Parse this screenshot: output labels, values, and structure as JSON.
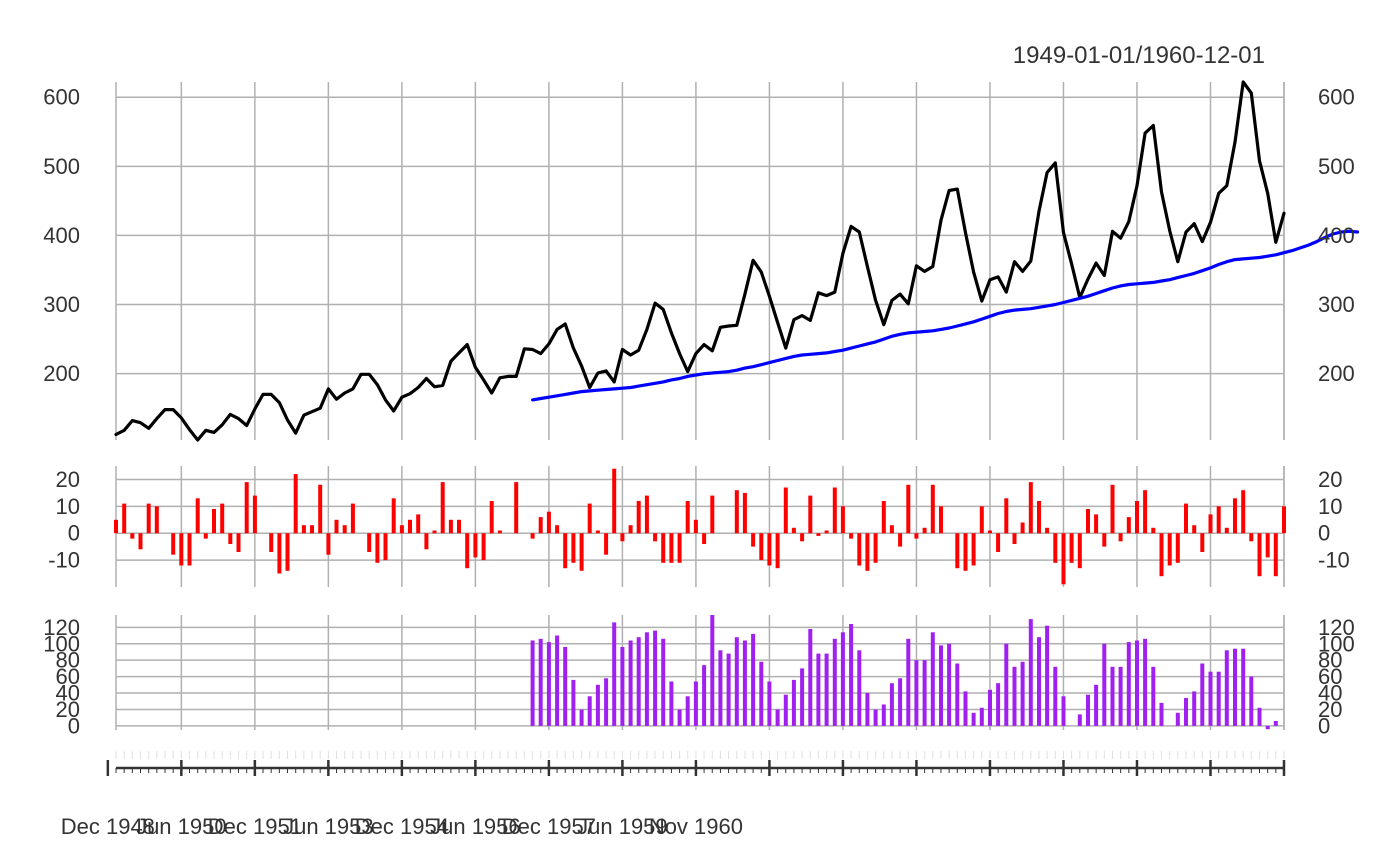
{
  "chart_data": {
    "type": "line",
    "title": "1949-01-01/1960-12-01",
    "x_start": "1949-01",
    "x_end": "1960-12",
    "x_tick_labels": [
      "Dec 1948",
      "Jun 1950",
      "Dec 1951",
      "Jun 1953",
      "Dec 1954",
      "Jun 1956",
      "Dec 1957",
      "Jun 1959",
      "Nov 1960"
    ],
    "grid": true,
    "colors": {
      "price": "#000000",
      "average": "#0000ff",
      "momentum": "#ff0000",
      "indicator": "#a020f0",
      "grid": "#b0b0b0"
    },
    "panels": [
      {
        "id": "main",
        "ylim": [
          104,
          622
        ],
        "y_ticks": [
          200,
          300,
          400,
          500,
          600
        ],
        "series": [
          {
            "id": "price",
            "color": "#000000",
            "start": "1949-01",
            "values": [
              112,
              118,
              132,
              129,
              121,
              135,
              148,
              148,
              136,
              119,
              104,
              118,
              115,
              126,
              141,
              135,
              125,
              149,
              170,
              170,
              158,
              133,
              114,
              140,
              145,
              150,
              178,
              163,
              172,
              178,
              199,
              199,
              184,
              162,
              146,
              166,
              171,
              180,
              193,
              181,
              183,
              218,
              230,
              242,
              209,
              191,
              172,
              194,
              196,
              196,
              236,
              235,
              229,
              243,
              264,
              272,
              237,
              211,
              180,
              201,
              204,
              188,
              235,
              227,
              234,
              264,
              302,
              293,
              259,
              229,
              203,
              229,
              242,
              233,
              267,
              269,
              270,
              315,
              364,
              347,
              312,
              274,
              237,
              278,
              284,
              277,
              317,
              313,
              318,
              374,
              413,
              405,
              355,
              306,
              271,
              306,
              315,
              301,
              356,
              348,
              355,
              422,
              465,
              467,
              404,
              347,
              305,
              336,
              340,
              318,
              362,
              348,
              363,
              435,
              491,
              505,
              404,
              359,
              310,
              337,
              360,
              342,
              406,
              396,
              420,
              472,
              548,
              559,
              463,
              407,
              362,
              405,
              417,
              391,
              419,
              461,
              472,
              535,
              622,
              606,
              508,
              461,
              390,
              432
            ]
          },
          {
            "id": "average",
            "color": "#0000ff",
            "start": "1953-04",
            "values": [
              162,
              164,
              166,
              168,
              170,
              172,
              174,
              175,
              176,
              177,
              178,
              179,
              180,
              182,
              184,
              186,
              188,
              191,
              193,
              196,
              198,
              200,
              201,
              202,
              203,
              205,
              208,
              210,
              213,
              216,
              219,
              222,
              225,
              227,
              228,
              229,
              230,
              232,
              234,
              237,
              240,
              243,
              246,
              250,
              254,
              257,
              259,
              260,
              261,
              262,
              264,
              266,
              269,
              272,
              275,
              279,
              283,
              287,
              290,
              292,
              293,
              294,
              296,
              298,
              300,
              303,
              306,
              309,
              312,
              316,
              320,
              324,
              327,
              329,
              330,
              331,
              332,
              334,
              336,
              339,
              342,
              345,
              349,
              353,
              358,
              362,
              365,
              366,
              367,
              368,
              370,
              372,
              375,
              378,
              382,
              386,
              391,
              397,
              402,
              405,
              406,
              405
            ]
          }
        ]
      },
      {
        "id": "momentum",
        "type": "bar",
        "color": "#ff0000",
        "ylim": [
          -20,
          25
        ],
        "y_ticks": [
          -10,
          0,
          10,
          20
        ],
        "start": "1949-01",
        "values": [
          5,
          11,
          -2,
          -6,
          11,
          10,
          0,
          -8,
          -12,
          -12,
          13,
          -2,
          9,
          11,
          -4,
          -7,
          19,
          14,
          0,
          -7,
          -15,
          -14,
          22,
          3,
          3,
          18,
          -8,
          5,
          3,
          11,
          0,
          -7,
          -11,
          -10,
          13,
          3,
          5,
          7,
          -6,
          1,
          19,
          5,
          5,
          -13,
          -9,
          -10,
          12,
          1,
          0,
          19,
          0,
          -2,
          6,
          8,
          3,
          -13,
          -11,
          -14,
          11,
          1,
          -8,
          24,
          -3,
          3,
          12,
          14,
          -3,
          -11,
          -11,
          -11,
          12,
          5,
          -4,
          14,
          0,
          0,
          16,
          15,
          -5,
          -10,
          -12,
          -13,
          17,
          2,
          -3,
          14,
          -1,
          1,
          17,
          10,
          -2,
          -12,
          -14,
          -11,
          12,
          3,
          -5,
          18,
          -2,
          2,
          18,
          10,
          0,
          -13,
          -14,
          -12,
          10,
          1,
          -7,
          13,
          -4,
          4,
          19,
          12,
          2,
          -11,
          -19,
          -11,
          -13,
          9,
          7,
          -5,
          18,
          -3,
          6,
          12,
          16,
          2,
          -16,
          -12,
          -11,
          11,
          3,
          -7,
          7,
          10,
          2,
          13,
          16,
          -3,
          -16,
          -9,
          -16,
          10
        ]
      },
      {
        "id": "indicator",
        "type": "bar",
        "color": "#a020f0",
        "ylim": [
          -5,
          135
        ],
        "y_ticks": [
          0,
          20,
          40,
          60,
          80,
          100,
          120
        ],
        "start": "1953-04",
        "values": [
          104,
          106,
          102,
          110,
          96,
          56,
          20,
          36,
          50,
          58,
          126,
          96,
          104,
          108,
          114,
          116,
          106,
          54,
          20,
          36,
          54,
          74,
          135,
          92,
          88,
          108,
          104,
          112,
          78,
          54,
          20,
          38,
          56,
          70,
          118,
          88,
          88,
          106,
          114,
          124,
          92,
          40,
          20,
          26,
          52,
          58,
          106,
          80,
          80,
          114,
          98,
          100,
          76,
          42,
          16,
          22,
          44,
          52,
          100,
          72,
          78,
          130,
          108,
          122,
          72,
          36,
          0,
          14,
          38,
          50,
          100,
          72,
          72,
          102,
          104,
          106,
          72,
          28,
          0,
          16,
          34,
          42,
          76,
          66,
          66,
          92,
          94,
          94,
          60,
          22,
          -4,
          6
        ]
      }
    ]
  }
}
